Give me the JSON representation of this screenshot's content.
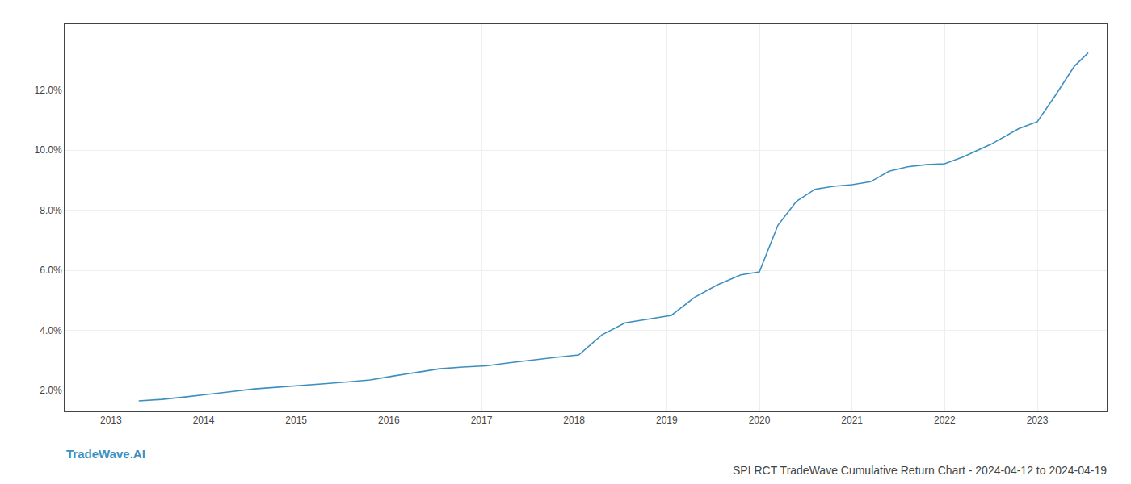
{
  "chart_data": {
    "type": "line",
    "title": "SPLRCT TradeWave Cumulative Return Chart - 2024-04-12 to 2024-04-19",
    "annotations": [
      "TradeWave.AI"
    ],
    "color": "#3d8fc0",
    "x": [
      2013.3,
      2013.55,
      2013.8,
      2014.05,
      2014.3,
      2014.55,
      2014.8,
      2015.05,
      2015.3,
      2015.55,
      2015.8,
      2016.05,
      2016.3,
      2016.55,
      2016.8,
      2017.05,
      2017.3,
      2017.55,
      2017.8,
      2018.05,
      2018.3,
      2018.55,
      2018.8,
      2019.05,
      2019.3,
      2019.55,
      2019.8,
      2020.0,
      2020.2,
      2020.4,
      2020.6,
      2020.8,
      2021.0,
      2021.2,
      2021.4,
      2021.6,
      2021.8,
      2022.0,
      2022.2,
      2022.5,
      2022.8,
      2023.0,
      2023.2,
      2023.4,
      2023.55
    ],
    "values": [
      1.65,
      1.7,
      1.78,
      1.88,
      1.96,
      2.05,
      2.1,
      2.17,
      2.22,
      2.28,
      2.35,
      2.48,
      2.6,
      2.72,
      2.78,
      2.82,
      2.92,
      3.02,
      3.1,
      3.18,
      3.85,
      4.25,
      4.38,
      4.5,
      5.1,
      5.52,
      5.85,
      5.95,
      7.5,
      8.3,
      8.7,
      8.8,
      8.85,
      8.95,
      9.3,
      9.45,
      9.52,
      9.55,
      9.78,
      10.2,
      10.72,
      10.95,
      11.85,
      12.8,
      13.25
    ],
    "xlim": [
      2012.5,
      2023.75
    ],
    "xticks": [
      2013,
      2014,
      2015,
      2016,
      2017,
      2018,
      2019,
      2020,
      2021,
      2022,
      2023
    ],
    "ylim": [
      1.3,
      14.2
    ],
    "yticks": [
      {
        "value": 2.0,
        "label": "2.0%"
      },
      {
        "value": 4.0,
        "label": "4.0%"
      },
      {
        "value": 6.0,
        "label": "6.0%"
      },
      {
        "value": 8.0,
        "label": "8.0%"
      },
      {
        "value": 10.0,
        "label": "10.0%"
      },
      {
        "value": 12.0,
        "label": "12.0%"
      }
    ],
    "grid": true
  }
}
